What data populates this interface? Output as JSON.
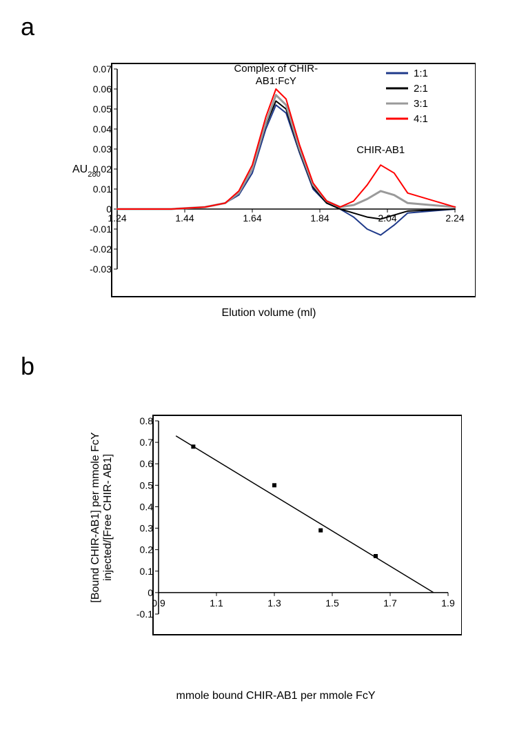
{
  "panelA": {
    "label": "a",
    "type": "line",
    "title": "Complex of CHIR-\nAB1:FcY",
    "annotation2": "CHIR-AB1",
    "xlabel": "Elution volume (ml)",
    "ylabel": "AU",
    "ylabel_sub": "280",
    "xlim": [
      1.24,
      2.24
    ],
    "ylim": [
      -0.03,
      0.07
    ],
    "xticks": [
      1.24,
      1.44,
      1.64,
      1.84,
      2.04,
      2.24
    ],
    "yticks": [
      -0.03,
      -0.02,
      -0.01,
      0,
      0.01,
      0.02,
      0.03,
      0.04,
      0.05,
      0.06,
      0.07
    ],
    "title_fontsize": 15,
    "label_fontsize": 16,
    "tick_fontsize": 14,
    "background_color": "#ffffff",
    "frame_color": "#000000",
    "frame_width": 2,
    "legend": {
      "items": [
        {
          "label": "1:1",
          "color": "#1f3a8a"
        },
        {
          "label": "2:1",
          "color": "#000000"
        },
        {
          "label": "3:1",
          "color": "#9a9a9a"
        },
        {
          "label": "4:1",
          "color": "#ff0000"
        }
      ]
    },
    "series": [
      {
        "name": "1:1",
        "color": "#1f3a8a",
        "width": 2,
        "x": [
          1.24,
          1.4,
          1.5,
          1.56,
          1.6,
          1.64,
          1.68,
          1.71,
          1.74,
          1.78,
          1.82,
          1.86,
          1.9,
          1.94,
          1.98,
          2.02,
          2.06,
          2.1,
          2.24
        ],
        "y": [
          0.0,
          0.0,
          0.001,
          0.003,
          0.007,
          0.018,
          0.04,
          0.052,
          0.048,
          0.028,
          0.01,
          0.003,
          0.0,
          -0.004,
          -0.01,
          -0.013,
          -0.008,
          -0.002,
          0.0
        ]
      },
      {
        "name": "2:1",
        "color": "#000000",
        "width": 2,
        "x": [
          1.24,
          1.4,
          1.5,
          1.56,
          1.6,
          1.64,
          1.68,
          1.71,
          1.74,
          1.78,
          1.82,
          1.86,
          1.9,
          1.94,
          1.98,
          2.02,
          2.06,
          2.1,
          2.24
        ],
        "y": [
          0.0,
          0.0,
          0.001,
          0.003,
          0.008,
          0.02,
          0.042,
          0.054,
          0.05,
          0.029,
          0.011,
          0.003,
          0.0,
          -0.002,
          -0.004,
          -0.005,
          -0.003,
          -0.001,
          0.0
        ]
      },
      {
        "name": "3:1",
        "color": "#9a9a9a",
        "width": 3,
        "x": [
          1.24,
          1.4,
          1.5,
          1.56,
          1.6,
          1.64,
          1.68,
          1.71,
          1.74,
          1.78,
          1.82,
          1.86,
          1.9,
          1.94,
          1.98,
          2.02,
          2.06,
          2.1,
          2.24
        ],
        "y": [
          0.0,
          0.0,
          0.001,
          0.003,
          0.008,
          0.02,
          0.043,
          0.057,
          0.052,
          0.03,
          0.012,
          0.004,
          0.001,
          0.002,
          0.005,
          0.009,
          0.007,
          0.003,
          0.001
        ]
      },
      {
        "name": "4:1",
        "color": "#ff0000",
        "width": 2,
        "x": [
          1.24,
          1.4,
          1.5,
          1.56,
          1.6,
          1.64,
          1.68,
          1.71,
          1.74,
          1.78,
          1.82,
          1.86,
          1.9,
          1.94,
          1.98,
          2.02,
          2.06,
          2.1,
          2.24
        ],
        "y": [
          0.0,
          0.0,
          0.001,
          0.003,
          0.009,
          0.022,
          0.046,
          0.06,
          0.055,
          0.032,
          0.013,
          0.004,
          0.001,
          0.004,
          0.012,
          0.022,
          0.018,
          0.008,
          0.001
        ]
      }
    ]
  },
  "panelB": {
    "label": "b",
    "type": "scatter",
    "xlabel": "mmole bound CHIR-AB1 per mmole FcY",
    "ylabel": "[Bound CHIR-AB1] per mmole FcY\ninjected/[Free CHIR- AB1]",
    "xlim": [
      0.9,
      1.9
    ],
    "ylim": [
      -0.1,
      0.8
    ],
    "xticks": [
      0.9,
      1.1,
      1.3,
      1.5,
      1.7,
      1.9
    ],
    "yticks": [
      -0.1,
      0,
      0.1,
      0.2,
      0.3,
      0.4,
      0.5,
      0.6,
      0.7,
      0.8
    ],
    "title_fontsize": 16,
    "label_fontsize": 16,
    "tick_fontsize": 14,
    "background_color": "#ffffff",
    "frame_color": "#000000",
    "frame_width": 2,
    "marker": {
      "shape": "square",
      "size": 6,
      "fill": "#000000"
    },
    "line": {
      "color": "#000000",
      "width": 1.5
    },
    "points": [
      {
        "x": 1.02,
        "y": 0.68
      },
      {
        "x": 1.3,
        "y": 0.5
      },
      {
        "x": 1.46,
        "y": 0.29
      },
      {
        "x": 1.65,
        "y": 0.17
      }
    ],
    "fit_line": {
      "x1": 0.96,
      "y1": 0.73,
      "x2": 1.85,
      "y2": 0.0
    }
  }
}
